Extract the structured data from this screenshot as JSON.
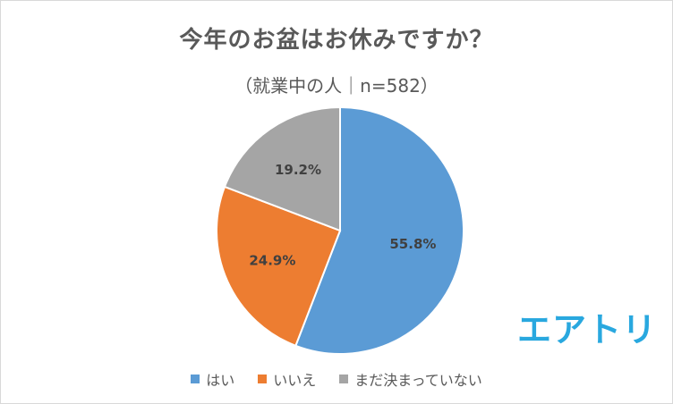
{
  "chart_data": {
    "type": "pie",
    "title": "今年のお盆はお休みですか？",
    "subtitle": "（就業中の人｜n=582）",
    "categories": [
      "はい",
      "いいえ",
      "まだ決まっていない"
    ],
    "values": [
      55.8,
      24.9,
      19.2
    ],
    "value_labels": [
      "55.8%",
      "24.9%",
      "19.2%"
    ],
    "colors": [
      "#5b9bd5",
      "#ed7d31",
      "#a5a5a5"
    ],
    "legend_position": "bottom"
  },
  "logo": {
    "text": "エアトリ",
    "color": "#29a8df"
  }
}
